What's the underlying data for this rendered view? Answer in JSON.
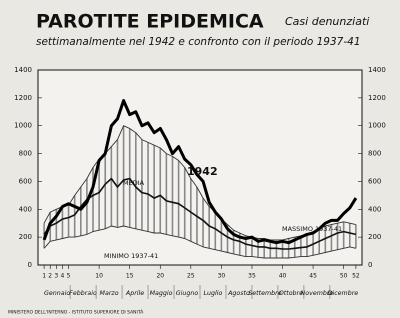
{
  "chart_data": {
    "type": "line",
    "title": "PAROTITE EPIDEMICA",
    "subtitle_right": "Casi denunziati",
    "subtitle": "settimanalmente nel 1942 e confronto con il periodo 1937-41",
    "x": [
      1,
      2,
      3,
      4,
      5,
      6,
      7,
      8,
      9,
      10,
      11,
      12,
      13,
      14,
      15,
      16,
      17,
      18,
      19,
      20,
      21,
      22,
      23,
      24,
      25,
      26,
      27,
      28,
      29,
      30,
      31,
      32,
      33,
      34,
      35,
      36,
      37,
      38,
      39,
      40,
      41,
      42,
      43,
      44,
      45,
      46,
      47,
      48,
      49,
      50,
      51,
      52
    ],
    "xlim": [
      0,
      53
    ],
    "xticks": [
      1,
      2,
      3,
      4,
      5,
      10,
      15,
      20,
      25,
      30,
      35,
      40,
      45,
      50,
      52
    ],
    "months": [
      "Gennaio",
      "Febbraio",
      "Marzo",
      "Aprile",
      "Maggio",
      "Giugno",
      "Luglio",
      "Agosto",
      "Settembre",
      "Ottobre",
      "Novembre",
      "Dicembre"
    ],
    "ylim": [
      0,
      1400
    ],
    "yticks": [
      0,
      200,
      400,
      600,
      800,
      1000,
      1200,
      1400
    ],
    "y2lim": [
      0,
      1400
    ],
    "y2ticks": [
      0,
      200,
      400,
      600,
      800,
      1000,
      1200,
      1400
    ],
    "series": [
      {
        "name": "1942",
        "color": "#000000",
        "values": [
          180,
          300,
          350,
          420,
          440,
          420,
          400,
          450,
          560,
          750,
          800,
          1000,
          1050,
          1180,
          1080,
          1100,
          1000,
          1020,
          950,
          980,
          900,
          800,
          850,
          760,
          720,
          650,
          600,
          450,
          380,
          330,
          260,
          220,
          200,
          190,
          200,
          170,
          180,
          170,
          160,
          170,
          160,
          180,
          200,
          220,
          230,
          260,
          300,
          320,
          320,
          370,
          410,
          480
        ]
      },
      {
        "name": "MEDIA",
        "color": "#111111",
        "values": [
          220,
          280,
          300,
          330,
          340,
          360,
          420,
          470,
          500,
          520,
          580,
          620,
          560,
          610,
          620,
          560,
          520,
          510,
          480,
          500,
          460,
          450,
          440,
          410,
          380,
          350,
          320,
          280,
          260,
          230,
          200,
          180,
          170,
          150,
          140,
          130,
          130,
          120,
          120,
          115,
          115,
          120,
          125,
          130,
          150,
          170,
          190,
          210,
          230,
          240,
          230,
          220
        ]
      },
      {
        "name": "MASSIMO 1937-41",
        "color": "#333333",
        "values": [
          300,
          380,
          400,
          420,
          430,
          500,
          560,
          620,
          700,
          760,
          800,
          850,
          900,
          1000,
          980,
          950,
          900,
          880,
          860,
          840,
          800,
          780,
          750,
          700,
          620,
          560,
          480,
          420,
          380,
          330,
          290,
          250,
          230,
          210,
          200,
          190,
          190,
          180,
          180,
          180,
          190,
          200,
          210,
          220,
          240,
          260,
          280,
          290,
          300,
          310,
          300,
          290
        ]
      },
      {
        "name": "MINIMO 1937-41",
        "color": "#333333",
        "values": [
          120,
          170,
          180,
          190,
          200,
          200,
          210,
          220,
          240,
          250,
          260,
          280,
          270,
          280,
          270,
          260,
          250,
          240,
          230,
          230,
          220,
          210,
          200,
          190,
          170,
          150,
          130,
          120,
          110,
          100,
          90,
          80,
          70,
          60,
          60,
          55,
          50,
          50,
          50,
          50,
          50,
          55,
          60,
          60,
          70,
          80,
          90,
          100,
          110,
          120,
          130,
          120
        ]
      }
    ],
    "footer": "MINISTERO DELL'INTERNO - ISTITUTO SUPERIORE DI SANITÀ"
  }
}
